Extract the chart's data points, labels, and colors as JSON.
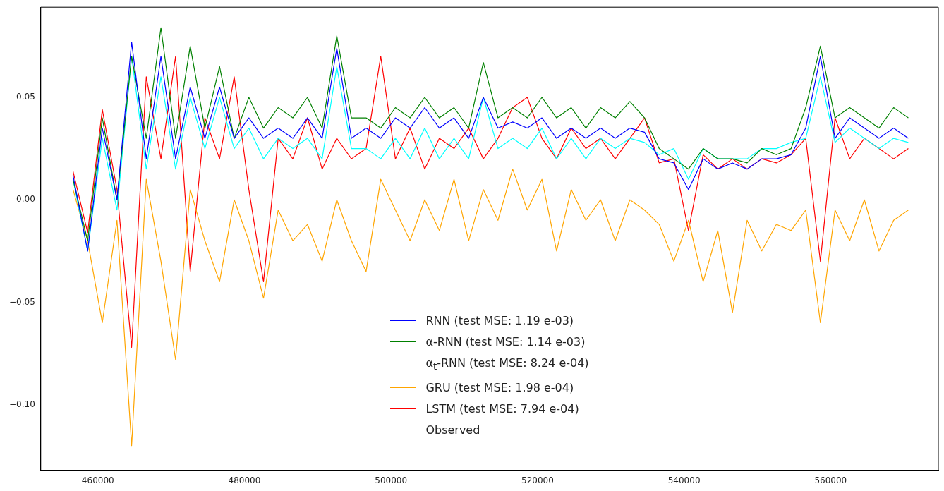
{
  "chart_data": {
    "type": "line",
    "marker": "none",
    "legend": "bottom",
    "grid": false,
    "x": [
      456600,
      458600,
      460600,
      462600,
      464600,
      466600,
      468600,
      470600,
      472600,
      474600,
      476600,
      478600,
      480600,
      482600,
      484600,
      486600,
      488600,
      490600,
      492600,
      494600,
      496600,
      498600,
      500600,
      502600,
      504600,
      506600,
      508600,
      510600,
      512600,
      514600,
      516600,
      518600,
      520600,
      522600,
      524600,
      526600,
      528600,
      530600,
      532600,
      534600,
      536600,
      538600,
      540600,
      542600,
      544600,
      546600,
      548600,
      550600,
      552600,
      554600,
      556600,
      558600,
      560600,
      562600,
      564600,
      566600,
      568600,
      570600
    ],
    "xlim": [
      452200,
      574700
    ],
    "xticks": [
      460000,
      480000,
      500000,
      520000,
      540000,
      560000
    ],
    "ylim": [
      -0.132,
      0.094
    ],
    "yticks": [
      {
        "value": 0.05,
        "label": "0.05"
      },
      {
        "value": 0,
        "label": "0.00"
      },
      {
        "value": -0.05,
        "label": "−0.05"
      },
      {
        "value": -0.1,
        "label": "−0.10"
      }
    ],
    "series": [
      {
        "name": "RNN (test MSE:  1.19 e-03)",
        "color": "#0000ff",
        "values": [
          0.012,
          -0.025,
          0.035,
          0.0,
          0.077,
          0.02,
          0.07,
          0.02,
          0.055,
          0.03,
          0.055,
          0.03,
          0.04,
          0.03,
          0.035,
          0.03,
          0.04,
          0.03,
          0.074,
          0.03,
          0.035,
          0.03,
          0.04,
          0.035,
          0.045,
          0.035,
          0.04,
          0.03,
          0.05,
          0.035,
          0.038,
          0.035,
          0.04,
          0.03,
          0.035,
          0.03,
          0.035,
          0.03,
          0.035,
          0.033,
          0.02,
          0.018,
          0.005,
          0.02,
          0.015,
          0.018,
          0.015,
          0.02,
          0.02,
          0.022,
          0.035,
          0.07,
          0.03,
          0.04,
          0.035,
          0.03,
          0.035,
          0.03
        ]
      },
      {
        "name": "α-RNN (test MSE:  1.14 e-03)",
        "color": "#008000",
        "values": [
          0.01,
          -0.02,
          0.04,
          0.0,
          0.07,
          0.03,
          0.084,
          0.03,
          0.075,
          0.035,
          0.065,
          0.03,
          0.05,
          0.035,
          0.045,
          0.04,
          0.05,
          0.035,
          0.08,
          0.04,
          0.04,
          0.035,
          0.045,
          0.04,
          0.05,
          0.04,
          0.045,
          0.035,
          0.067,
          0.04,
          0.045,
          0.04,
          0.05,
          0.04,
          0.045,
          0.035,
          0.045,
          0.04,
          0.048,
          0.04,
          0.025,
          0.02,
          0.015,
          0.025,
          0.02,
          0.02,
          0.018,
          0.025,
          0.022,
          0.025,
          0.045,
          0.075,
          0.04,
          0.045,
          0.04,
          0.035,
          0.045,
          0.04
        ]
      },
      {
        "name": "α$_{t}$-RNN (test MSE: 8.24 e-04)",
        "color": "#00ffff",
        "values": [
          0.01,
          -0.025,
          0.03,
          -0.005,
          0.07,
          0.015,
          0.06,
          0.015,
          0.05,
          0.025,
          0.05,
          0.025,
          0.035,
          0.02,
          0.03,
          0.025,
          0.03,
          0.02,
          0.065,
          0.025,
          0.025,
          0.02,
          0.03,
          0.02,
          0.035,
          0.02,
          0.03,
          0.02,
          0.05,
          0.025,
          0.03,
          0.025,
          0.035,
          0.02,
          0.03,
          0.02,
          0.03,
          0.025,
          0.03,
          0.028,
          0.022,
          0.025,
          0.01,
          0.025,
          0.02,
          0.02,
          0.02,
          0.025,
          0.025,
          0.028,
          0.03,
          0.06,
          0.028,
          0.035,
          0.03,
          0.025,
          0.03,
          0.028
        ]
      },
      {
        "name": "GRU (test MSE: 1.98 e-04)",
        "color": "#ffa500",
        "values": [
          0.005,
          -0.02,
          -0.06,
          -0.01,
          -0.12,
          0.01,
          -0.03,
          -0.078,
          0.005,
          -0.02,
          -0.04,
          0.0,
          -0.02,
          -0.048,
          -0.005,
          -0.02,
          -0.012,
          -0.03,
          0.0,
          -0.02,
          -0.035,
          0.01,
          -0.005,
          -0.02,
          0.0,
          -0.015,
          0.01,
          -0.02,
          0.005,
          -0.01,
          0.015,
          -0.005,
          0.01,
          -0.025,
          0.005,
          -0.01,
          0.0,
          -0.02,
          0.0,
          -0.005,
          -0.012,
          -0.03,
          -0.01,
          -0.04,
          -0.015,
          -0.055,
          -0.01,
          -0.025,
          -0.012,
          -0.015,
          -0.005,
          -0.06,
          -0.005,
          -0.02,
          0.0,
          -0.025,
          -0.01,
          -0.005
        ]
      },
      {
        "name": "LSTM (test MSE: 7.94 e-04)",
        "color": "#ff0000",
        "values": [
          0.014,
          -0.016,
          0.044,
          0.005,
          -0.072,
          0.06,
          0.02,
          0.07,
          -0.035,
          0.04,
          0.02,
          0.06,
          0.005,
          -0.04,
          0.03,
          0.02,
          0.04,
          0.015,
          0.03,
          0.02,
          0.025,
          0.07,
          0.02,
          0.035,
          0.015,
          0.03,
          0.025,
          0.035,
          0.02,
          0.03,
          0.045,
          0.05,
          0.03,
          0.02,
          0.035,
          0.025,
          0.03,
          0.02,
          0.03,
          0.04,
          0.018,
          0.02,
          -0.015,
          0.022,
          0.015,
          0.02,
          0.015,
          0.02,
          0.018,
          0.022,
          0.03,
          -0.03,
          0.04,
          0.02,
          0.03,
          0.025,
          0.02,
          0.025
        ]
      },
      {
        "name": "Observed",
        "color": "#000000",
        "values": [
          null,
          null,
          null,
          null,
          null,
          null,
          null,
          null,
          null,
          null,
          null,
          null,
          null,
          null,
          null,
          null,
          null,
          null,
          null,
          null,
          null,
          null,
          null,
          null,
          null,
          null,
          null,
          null,
          null,
          null,
          null,
          null,
          null,
          null,
          null,
          null,
          null,
          null,
          null,
          null,
          null,
          null,
          null,
          null,
          null,
          null,
          null,
          null,
          null,
          null,
          null,
          null,
          null,
          null,
          null,
          null,
          null,
          null
        ]
      }
    ]
  }
}
